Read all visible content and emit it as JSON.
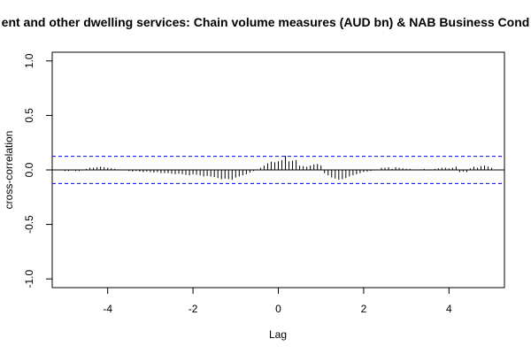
{
  "chart_data": {
    "type": "bar",
    "title": "ent and other dwelling services: Chain volume measures (AUD bn) & NAB Business Cond",
    "xlabel": "Lag",
    "ylabel": "cross-correlation",
    "xlim": [
      -5.3,
      5.3
    ],
    "ylim": [
      -1.08,
      1.08
    ],
    "x_ticks": [
      "-4",
      "-2",
      "0",
      "2",
      "4"
    ],
    "y_ticks": [
      "-1.0",
      "-0.5",
      "0.0",
      "0.5",
      "1.0"
    ],
    "confidence_bound": 0.125,
    "x": [
      -5.0,
      -4.917,
      -4.833,
      -4.75,
      -4.667,
      -4.583,
      -4.5,
      -4.417,
      -4.333,
      -4.25,
      -4.167,
      -4.083,
      -4.0,
      -3.917,
      -3.833,
      -3.75,
      -3.667,
      -3.583,
      -3.5,
      -3.417,
      -3.333,
      -3.25,
      -3.167,
      -3.083,
      -3.0,
      -2.917,
      -2.833,
      -2.75,
      -2.667,
      -2.583,
      -2.5,
      -2.417,
      -2.333,
      -2.25,
      -2.167,
      -2.083,
      -2.0,
      -1.917,
      -1.833,
      -1.75,
      -1.667,
      -1.583,
      -1.5,
      -1.417,
      -1.333,
      -1.25,
      -1.167,
      -1.083,
      -1.0,
      -0.917,
      -0.833,
      -0.75,
      -0.667,
      -0.583,
      -0.5,
      -0.417,
      -0.333,
      -0.25,
      -0.167,
      -0.083,
      0.0,
      0.083,
      0.167,
      0.25,
      0.333,
      0.417,
      0.5,
      0.583,
      0.667,
      0.75,
      0.833,
      0.917,
      1.0,
      1.083,
      1.167,
      1.25,
      1.333,
      1.417,
      1.5,
      1.583,
      1.667,
      1.75,
      1.833,
      1.917,
      2.0,
      2.083,
      2.167,
      2.25,
      2.333,
      2.417,
      2.5,
      2.583,
      2.667,
      2.75,
      2.833,
      2.917,
      3.0,
      3.083,
      3.167,
      3.25,
      3.333,
      3.417,
      3.5,
      3.583,
      3.667,
      3.75,
      3.833,
      3.917,
      4.0,
      4.083,
      4.167,
      4.25,
      4.333,
      4.417,
      4.5,
      4.583,
      4.667,
      4.75,
      4.833,
      4.917,
      5.0
    ],
    "values": [
      -0.01,
      -0.01,
      -0.005,
      -0.01,
      -0.01,
      0.0,
      0.01,
      0.02,
      0.02,
      0.025,
      0.03,
      0.025,
      0.02,
      0.015,
      0.01,
      0.005,
      0.0,
      -0.005,
      -0.01,
      -0.015,
      -0.01,
      -0.015,
      -0.02,
      -0.015,
      -0.02,
      -0.025,
      -0.02,
      -0.03,
      -0.03,
      -0.03,
      -0.035,
      -0.04,
      -0.035,
      -0.04,
      -0.045,
      -0.05,
      -0.04,
      -0.045,
      -0.05,
      -0.06,
      -0.055,
      -0.06,
      -0.065,
      -0.075,
      -0.085,
      -0.08,
      -0.085,
      -0.09,
      -0.07,
      -0.06,
      -0.05,
      -0.04,
      -0.025,
      -0.01,
      0.005,
      0.02,
      0.04,
      0.06,
      0.075,
      0.07,
      0.08,
      0.09,
      0.13,
      0.08,
      0.085,
      0.09,
      0.04,
      0.035,
      0.03,
      0.04,
      0.05,
      0.055,
      0.04,
      -0.03,
      -0.05,
      -0.07,
      -0.08,
      -0.09,
      -0.085,
      -0.075,
      -0.06,
      -0.05,
      -0.04,
      -0.03,
      -0.02,
      -0.015,
      -0.01,
      -0.005,
      0.0,
      0.02,
      0.02,
      0.025,
      0.01,
      0.025,
      0.02,
      0.015,
      0.01,
      0.01,
      0.005,
      0.0,
      0.005,
      0.01,
      -0.005,
      0.005,
      0.01,
      0.015,
      0.02,
      0.02,
      0.015,
      0.02,
      0.03,
      -0.02,
      -0.015,
      -0.02,
      0.015,
      0.03,
      0.02,
      0.035,
      0.04,
      0.03,
      0.02
    ],
    "grid": false,
    "legend": "none",
    "colors": {
      "bars": "#000000",
      "bounds": "#0000ff",
      "zero_line": "#000000",
      "frame": "#000000"
    }
  }
}
